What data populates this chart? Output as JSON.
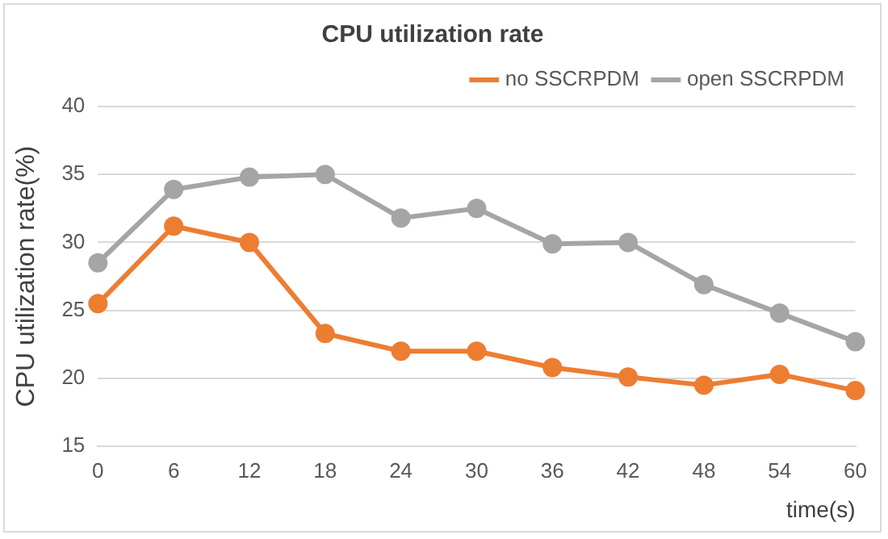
{
  "chart_data": {
    "type": "line",
    "title": "CPU utilization rate",
    "xlabel": "time(s)",
    "ylabel": "CPU utilization rate(%)",
    "categories": [
      "0",
      "6",
      "12",
      "18",
      "24",
      "30",
      "36",
      "42",
      "48",
      "54",
      "60"
    ],
    "series": [
      {
        "name": "no SSCRPDM",
        "color": "#ed7d31",
        "values": [
          25.5,
          31.2,
          30,
          23.3,
          22,
          22,
          20.8,
          20.1,
          19.5,
          20.3,
          19.1
        ]
      },
      {
        "name": "open SSCRPDM",
        "color": "#a5a5a5",
        "values": [
          28.5,
          33.9,
          34.8,
          35,
          31.8,
          32.5,
          29.9,
          30,
          26.9,
          24.8,
          22.7
        ]
      }
    ],
    "ylim": [
      15,
      40
    ],
    "yticks": [
      15,
      20,
      25,
      30,
      35,
      40
    ],
    "grid": "y",
    "legend": "top right",
    "marker": "circle",
    "line_style": "solid"
  }
}
